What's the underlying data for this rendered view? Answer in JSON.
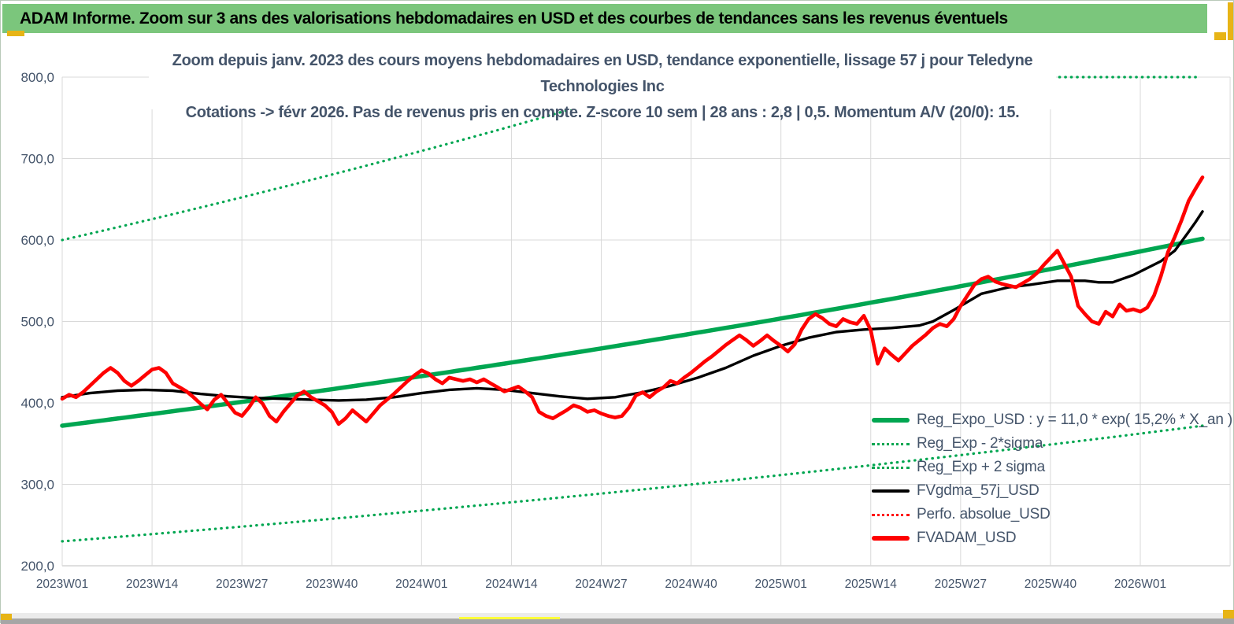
{
  "banner": {
    "title": "ADAM Informe. Zoom sur 3 ans des valorisations hebdomadaires en USD et des courbes de tendances sans les revenus éventuels",
    "bg_color": "#7BC67C"
  },
  "chart": {
    "title_line1": "Zoom depuis janv. 2023 des cours moyens hebdomadaires en USD, tendance exponentielle, lissage 57 j pour Teledyne Technologies Inc",
    "title_line2": "Cotations -> févr 2026.  Pas de revenus pris en compte. Z-score 10 sem | 28 ans : 2,8 | 0,5. Momentum A/V (20/0): 15."
  },
  "chart_data": {
    "type": "line",
    "title": "Zoom depuis janv. 2023 des cours moyens hebdomadaires en USD, tendance exponentielle, lissage 57 j pour Teledyne Technologies Inc — Cotations -> févr 2026",
    "x_axis": {
      "tick_labels": [
        "2023W01",
        "2023W14",
        "2023W27",
        "2023W40",
        "2024W01",
        "2024W14",
        "2024W27",
        "2024W40",
        "2025W01",
        "2025W14",
        "2025W27",
        "2025W40",
        "2026W01"
      ],
      "weeks_per_tick": 13,
      "total_weeks": 169,
      "grid": true
    },
    "y_axis": {
      "min": 200,
      "max": 800,
      "step": 100,
      "tick_labels": [
        "200,0",
        "300,0",
        "400,0",
        "500,0",
        "600,0",
        "700,0",
        "800,0"
      ],
      "grid": true
    },
    "colors": {
      "green": "#00A651",
      "red": "#FE0000",
      "black": "#000000",
      "grid": "#D9D9D9",
      "axis_text": "#44546A"
    },
    "series": [
      {
        "key": "reg-exp-minus-2sigma",
        "name": "Reg_Exp - 2*sigma",
        "color": "#00A651",
        "style": "dotted",
        "width": 3.2,
        "exp": {
          "start_value": 230,
          "rate_pct_per_year": 15.2,
          "from_week": 0,
          "to_week": 165
        }
      },
      {
        "key": "reg-exp-plus-2sigma",
        "name": "Reg_Exp + 2 sigma",
        "color": "#00A651",
        "style": "dotted",
        "width": 3.2,
        "exp": {
          "start_value": 600,
          "rate_pct_per_year": 16.8,
          "from_week": 0,
          "to_week": 80
        }
      },
      {
        "key": "reg-exp-plus-2sigma-clip",
        "name": "Reg_Exp + 2 sigma (clipped at 800)",
        "color": "#00A651",
        "style": "dotted",
        "width": 3.2,
        "const": {
          "value": 800,
          "from_week": 144.3,
          "to_week": 164.5
        }
      },
      {
        "key": "reg-expo-usd",
        "name": "Reg_Expo_USD",
        "color": "#00A651",
        "style": "solid",
        "width": 5.5,
        "exp": {
          "start_value": 372,
          "rate_pct_per_year": 15.2,
          "from_week": 0,
          "to_week": 165
        }
      },
      {
        "key": "fvgdma-57j-usd",
        "name": "FVgdma_57j_USD",
        "color": "#000000",
        "style": "solid",
        "width": 3.4,
        "points": [
          [
            0,
            407
          ],
          [
            4,
            412
          ],
          [
            8,
            415
          ],
          [
            12,
            416
          ],
          [
            16,
            415
          ],
          [
            20,
            411
          ],
          [
            24,
            408
          ],
          [
            28,
            406
          ],
          [
            32,
            405
          ],
          [
            36,
            404
          ],
          [
            40,
            403
          ],
          [
            44,
            404
          ],
          [
            48,
            407
          ],
          [
            52,
            412
          ],
          [
            56,
            416
          ],
          [
            60,
            418
          ],
          [
            64,
            416
          ],
          [
            68,
            412
          ],
          [
            72,
            408
          ],
          [
            76,
            405
          ],
          [
            80,
            407
          ],
          [
            84,
            413
          ],
          [
            88,
            421
          ],
          [
            92,
            431
          ],
          [
            96,
            443
          ],
          [
            100,
            458
          ],
          [
            104,
            470
          ],
          [
            108,
            480
          ],
          [
            112,
            487
          ],
          [
            116,
            490
          ],
          [
            120,
            492
          ],
          [
            124,
            495
          ],
          [
            126,
            500
          ],
          [
            129,
            514
          ],
          [
            133,
            534
          ],
          [
            137,
            542
          ],
          [
            140,
            545
          ],
          [
            144,
            550
          ],
          [
            148,
            550
          ],
          [
            150,
            548
          ],
          [
            152,
            548
          ],
          [
            155,
            557
          ],
          [
            159,
            574
          ],
          [
            161,
            587
          ],
          [
            163,
            610
          ],
          [
            164,
            622
          ],
          [
            165,
            635
          ]
        ]
      },
      {
        "key": "fvadam-usd",
        "name": "FVADAM_USD",
        "color": "#FE0000",
        "style": "solid",
        "width": 4.6,
        "points": [
          [
            0,
            405
          ],
          [
            1,
            410
          ],
          [
            2,
            407
          ],
          [
            3,
            413
          ],
          [
            4,
            421
          ],
          [
            5,
            429
          ],
          [
            6,
            437
          ],
          [
            7,
            443
          ],
          [
            8,
            437
          ],
          [
            9,
            427
          ],
          [
            10,
            421
          ],
          [
            11,
            427
          ],
          [
            12,
            434
          ],
          [
            13,
            441
          ],
          [
            14,
            443
          ],
          [
            15,
            437
          ],
          [
            16,
            424
          ],
          [
            17,
            419
          ],
          [
            18,
            414
          ],
          [
            19,
            407
          ],
          [
            20,
            399
          ],
          [
            21,
            392
          ],
          [
            22,
            404
          ],
          [
            23,
            410
          ],
          [
            24,
            399
          ],
          [
            25,
            388
          ],
          [
            26,
            384
          ],
          [
            27,
            394
          ],
          [
            28,
            407
          ],
          [
            29,
            399
          ],
          [
            30,
            384
          ],
          [
            31,
            377
          ],
          [
            32,
            389
          ],
          [
            33,
            399
          ],
          [
            34,
            409
          ],
          [
            35,
            414
          ],
          [
            36,
            407
          ],
          [
            37,
            402
          ],
          [
            38,
            397
          ],
          [
            39,
            389
          ],
          [
            40,
            374
          ],
          [
            41,
            381
          ],
          [
            42,
            391
          ],
          [
            43,
            384
          ],
          [
            44,
            377
          ],
          [
            45,
            387
          ],
          [
            46,
            397
          ],
          [
            47,
            404
          ],
          [
            48,
            411
          ],
          [
            49,
            419
          ],
          [
            50,
            427
          ],
          [
            51,
            434
          ],
          [
            52,
            440
          ],
          [
            53,
            436
          ],
          [
            54,
            429
          ],
          [
            55,
            424
          ],
          [
            56,
            431
          ],
          [
            57,
            429
          ],
          [
            58,
            427
          ],
          [
            59,
            429
          ],
          [
            60,
            425
          ],
          [
            61,
            429
          ],
          [
            62,
            424
          ],
          [
            63,
            419
          ],
          [
            64,
            414
          ],
          [
            65,
            417
          ],
          [
            66,
            420
          ],
          [
            67,
            414
          ],
          [
            68,
            407
          ],
          [
            69,
            389
          ],
          [
            70,
            384
          ],
          [
            71,
            381
          ],
          [
            72,
            386
          ],
          [
            73,
            391
          ],
          [
            74,
            397
          ],
          [
            75,
            394
          ],
          [
            76,
            389
          ],
          [
            77,
            391
          ],
          [
            78,
            387
          ],
          [
            79,
            384
          ],
          [
            80,
            382
          ],
          [
            81,
            384
          ],
          [
            82,
            394
          ],
          [
            83,
            409
          ],
          [
            84,
            413
          ],
          [
            85,
            407
          ],
          [
            86,
            414
          ],
          [
            87,
            419
          ],
          [
            88,
            427
          ],
          [
            89,
            424
          ],
          [
            90,
            431
          ],
          [
            91,
            437
          ],
          [
            92,
            444
          ],
          [
            93,
            451
          ],
          [
            94,
            457
          ],
          [
            95,
            464
          ],
          [
            96,
            471
          ],
          [
            97,
            477
          ],
          [
            98,
            483
          ],
          [
            99,
            477
          ],
          [
            100,
            470
          ],
          [
            101,
            476
          ],
          [
            102,
            483
          ],
          [
            103,
            476
          ],
          [
            104,
            470
          ],
          [
            105,
            463
          ],
          [
            106,
            472
          ],
          [
            107,
            490
          ],
          [
            108,
            503
          ],
          [
            109,
            509
          ],
          [
            110,
            504
          ],
          [
            111,
            497
          ],
          [
            112,
            494
          ],
          [
            113,
            503
          ],
          [
            114,
            499
          ],
          [
            115,
            497
          ],
          [
            116,
            507
          ],
          [
            117,
            489
          ],
          [
            118,
            448
          ],
          [
            119,
            467
          ],
          [
            120,
            459
          ],
          [
            121,
            452
          ],
          [
            122,
            461
          ],
          [
            123,
            470
          ],
          [
            124,
            477
          ],
          [
            125,
            484
          ],
          [
            126,
            492
          ],
          [
            127,
            497
          ],
          [
            128,
            494
          ],
          [
            129,
            503
          ],
          [
            130,
            519
          ],
          [
            131,
            532
          ],
          [
            132,
            545
          ],
          [
            133,
            552
          ],
          [
            134,
            555
          ],
          [
            135,
            549
          ],
          [
            136,
            546
          ],
          [
            137,
            544
          ],
          [
            138,
            542
          ],
          [
            139,
            547
          ],
          [
            140,
            552
          ],
          [
            141,
            559
          ],
          [
            142,
            569
          ],
          [
            143,
            578
          ],
          [
            144,
            587
          ],
          [
            145,
            571
          ],
          [
            146,
            555
          ],
          [
            147,
            519
          ],
          [
            148,
            509
          ],
          [
            149,
            500
          ],
          [
            150,
            497
          ],
          [
            151,
            512
          ],
          [
            152,
            506
          ],
          [
            153,
            521
          ],
          [
            154,
            513
          ],
          [
            155,
            515
          ],
          [
            156,
            512
          ],
          [
            157,
            517
          ],
          [
            158,
            532
          ],
          [
            159,
            556
          ],
          [
            160,
            585
          ],
          [
            161,
            604
          ],
          [
            162,
            625
          ],
          [
            163,
            648
          ],
          [
            164,
            663
          ],
          [
            165,
            677
          ]
        ]
      }
    ],
    "legend": {
      "position": "bottom-right-inside",
      "items": [
        {
          "key": "reg-expo-usd",
          "label": "Reg_Expo_USD : y = 11,0 * exp( 15,2% *  X_an )",
          "color": "#00A651",
          "style": "solid-thick"
        },
        {
          "key": "reg-exp-minus-2sigma",
          "label": "Reg_Exp - 2*sigma",
          "color": "#00A651",
          "style": "dotted"
        },
        {
          "key": "reg-exp-plus-2sigma",
          "label": "Reg_Exp + 2 sigma",
          "color": "#00A651",
          "style": "dotted"
        },
        {
          "key": "fvgdma-57j-usd",
          "label": "FVgdma_57j_USD",
          "color": "#000000",
          "style": "solid"
        },
        {
          "key": "perfo-absolue-usd",
          "label": "Perfo. absolue_USD",
          "color": "#FE0000",
          "style": "dotted"
        },
        {
          "key": "fvadam-usd",
          "label": "FVADAM_USD",
          "color": "#FE0000",
          "style": "solid-thick"
        }
      ]
    }
  }
}
